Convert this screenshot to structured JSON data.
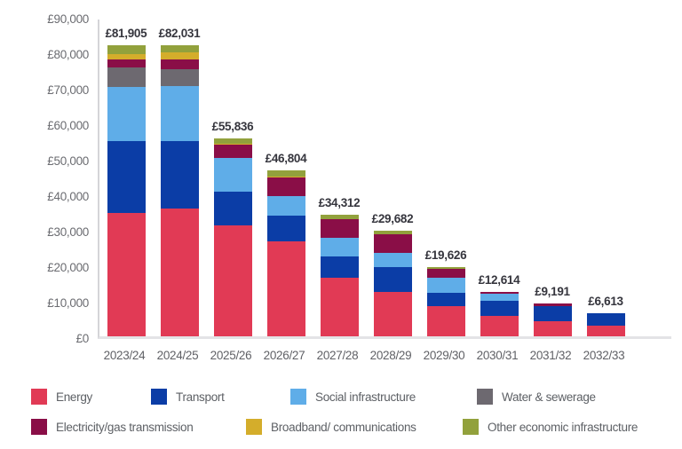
{
  "chart_data": {
    "type": "bar",
    "stacked": true,
    "title": "",
    "xlabel": "",
    "ylabel": "",
    "grid": "none",
    "categories": [
      "2023/24",
      "2024/25",
      "2025/26",
      "2026/27",
      "2027/28",
      "2028/29",
      "2029/30",
      "2030/31",
      "2031/32",
      "2032/33"
    ],
    "totals": [
      "£81,905",
      "£82,031",
      "£55,836",
      "£46,804",
      "£34,312",
      "£29,682",
      "£19,626",
      "£12,614",
      "£9,191",
      "£6,613"
    ],
    "series": [
      {
        "name": "Energy",
        "color": "#e13a55",
        "values": [
          34700,
          36041,
          31196,
          26634,
          16462,
          12402,
          8596,
          5860,
          4190,
          3100
        ]
      },
      {
        "name": "Transport",
        "color": "#0b3da6",
        "values": [
          20200,
          19000,
          9600,
          7270,
          6000,
          7090,
          3760,
          4050,
          4421,
          3513
        ]
      },
      {
        "name": "Social infrastructure",
        "color": "#5fade8",
        "values": [
          15350,
          15460,
          9450,
          5610,
          5190,
          3930,
          4190,
          2080,
          0,
          0
        ]
      },
      {
        "name": "Water & sewerage",
        "color": "#6d6970",
        "values": [
          5400,
          4840,
          0,
          0,
          0,
          0,
          0,
          0,
          0,
          0
        ]
      },
      {
        "name": "Electricity/gas transmission",
        "color": "#8a0e47",
        "values": [
          2250,
          2760,
          3660,
          5260,
          5260,
          5260,
          2430,
          624,
          580,
          0
        ]
      },
      {
        "name": "Broadband/ communications",
        "color": "#d4ad2b",
        "values": [
          1680,
          1830,
          350,
          200,
          0,
          0,
          0,
          0,
          0,
          0
        ]
      },
      {
        "name": "Other economic infrastructure",
        "color": "#92a13c",
        "values": [
          2325,
          2100,
          1580,
          1830,
          1400,
          1000,
          650,
          0,
          0,
          0
        ]
      }
    ],
    "y_axis": {
      "min": 0,
      "max": 90000,
      "tick_step": 10000,
      "tick_labels": [
        "£0",
        "£10,000",
        "£20,000",
        "£30,000",
        "£40,000",
        "£50,000",
        "£60,000",
        "£70,000",
        "£80,000",
        "£90,000"
      ]
    },
    "legend": {
      "position": "bottom",
      "rows": [
        [
          0,
          1,
          2,
          3
        ],
        [
          4,
          5,
          6
        ]
      ]
    }
  }
}
